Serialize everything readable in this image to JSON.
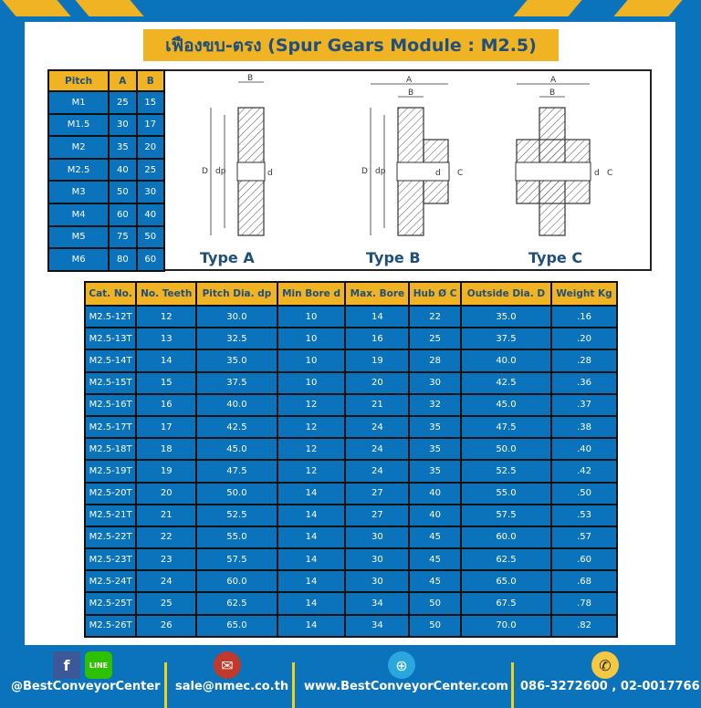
{
  "title": "เฟืองขบ-ตรง (Spur Gears Module : M2.5)",
  "pitch_table": {
    "headers": [
      "Pitch",
      "A",
      "B"
    ],
    "rows": [
      [
        "M1",
        "25",
        "15"
      ],
      [
        "M1.5",
        "30",
        "17"
      ],
      [
        "M2",
        "35",
        "20"
      ],
      [
        "M2.5",
        "40",
        "25"
      ],
      [
        "M3",
        "50",
        "30"
      ],
      [
        "M4",
        "60",
        "40"
      ],
      [
        "M5",
        "75",
        "50"
      ],
      [
        "M6",
        "80",
        "60"
      ]
    ]
  },
  "diagram": {
    "types": [
      "Type A",
      "Type B",
      "Type C"
    ],
    "dims": {
      "A": "A",
      "B": "B",
      "D": "D",
      "dp": "dp",
      "d": "d",
      "C": "C"
    }
  },
  "spec_table": {
    "headers": [
      "Cat. No.",
      "No. Teeth",
      "Pitch Dia. dp",
      "Min Bore d",
      "Max. Bore",
      "Hub Ø C",
      "Outside Dia. D",
      "Weight Kg"
    ],
    "rows": [
      [
        "M2.5-12T",
        "12",
        "30.0",
        "10",
        "14",
        "22",
        "35.0",
        ".16"
      ],
      [
        "M2.5-13T",
        "13",
        "32.5",
        "10",
        "16",
        "25",
        "37.5",
        ".20"
      ],
      [
        "M2.5-14T",
        "14",
        "35.0",
        "10",
        "19",
        "28",
        "40.0",
        ".28"
      ],
      [
        "M2.5-15T",
        "15",
        "37.5",
        "10",
        "20",
        "30",
        "42.5",
        ".36"
      ],
      [
        "M2.5-16T",
        "16",
        "40.0",
        "12",
        "21",
        "32",
        "45.0",
        ".37"
      ],
      [
        "M2.5-17T",
        "17",
        "42.5",
        "12",
        "24",
        "35",
        "47.5",
        ".38"
      ],
      [
        "M2.5-18T",
        "18",
        "45.0",
        "12",
        "24",
        "35",
        "50.0",
        ".40"
      ],
      [
        "M2.5-19T",
        "19",
        "47.5",
        "12",
        "24",
        "35",
        "52.5",
        ".42"
      ],
      [
        "M2.5-20T",
        "20",
        "50.0",
        "14",
        "27",
        "40",
        "55.0",
        ".50"
      ],
      [
        "M2.5-21T",
        "21",
        "52.5",
        "14",
        "27",
        "40",
        "57.5",
        ".53"
      ],
      [
        "M2.5-22T",
        "22",
        "55.0",
        "14",
        "30",
        "45",
        "60.0",
        ".57"
      ],
      [
        "M2.5-23T",
        "23",
        "57.5",
        "14",
        "30",
        "45",
        "62.5",
        ".60"
      ],
      [
        "M2.5-24T",
        "24",
        "60.0",
        "14",
        "30",
        "45",
        "65.0",
        ".68"
      ],
      [
        "M2.5-25T",
        "25",
        "62.5",
        "14",
        "34",
        "50",
        "67.5",
        ".78"
      ],
      [
        "M2.5-26T",
        "26",
        "65.0",
        "14",
        "34",
        "50",
        "70.0",
        ".82"
      ]
    ]
  },
  "footer": {
    "social": "@BestConveyorCenter",
    "email": "sale@nmec.co.th",
    "website": "www.BestConveyorCenter.com",
    "phone": "086-3272600 , 02-0017766",
    "line_label": "LINE",
    "fb_label": "f"
  },
  "colors": {
    "blue": "#0b72bc",
    "yellow": "#f0b323",
    "title_text": "#1f4f7a"
  }
}
